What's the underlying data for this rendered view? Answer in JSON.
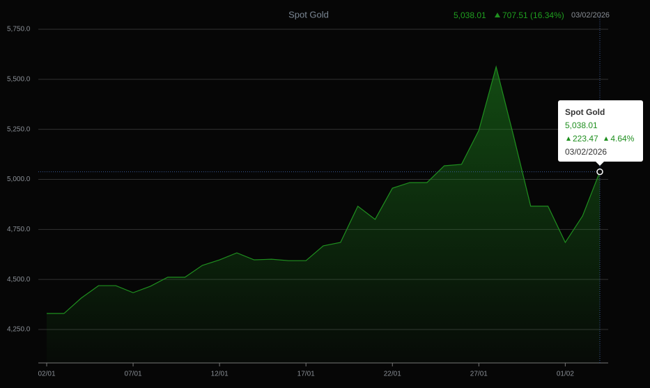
{
  "chart_data": {
    "type": "area",
    "title": "Spot Gold",
    "header": {
      "value": "5,038.01",
      "change": "707.51",
      "change_pct": "(16.34%)",
      "date": "03/02/2026"
    },
    "tooltip": {
      "title": "Spot Gold",
      "value": "5,038.01",
      "change": "223.47",
      "change_pct": "4.64%",
      "date": "03/02/2026"
    },
    "categories": [
      "02/01",
      null,
      null,
      null,
      null,
      "07/01",
      null,
      null,
      null,
      null,
      "12/01",
      null,
      null,
      null,
      null,
      "17/01",
      null,
      null,
      null,
      null,
      "22/01",
      null,
      null,
      null,
      null,
      "27/01",
      null,
      null,
      null,
      null,
      "01/02",
      null,
      null
    ],
    "values": [
      4330,
      4330,
      4407,
      4469,
      4469,
      4434,
      4466,
      4511,
      4511,
      4570,
      4598,
      4633,
      4598,
      4601,
      4594,
      4594,
      4668,
      4685,
      4866,
      4800,
      4956,
      4984,
      4984,
      5068,
      5075,
      5245,
      5562,
      5220,
      4866,
      4866,
      4685,
      4817,
      5038.01
    ],
    "color": "#1f8f1f",
    "ylim": [
      4083,
      5750
    ],
    "yticks": [
      {
        "value": 4250,
        "label": "4,250.0"
      },
      {
        "value": 4500,
        "label": "4,500.0"
      },
      {
        "value": 4750,
        "label": "4,750.0"
      },
      {
        "value": 5000,
        "label": "5,000.0"
      },
      {
        "value": 5250,
        "label": "5,250.0"
      },
      {
        "value": 5500,
        "label": "5,500.0"
      },
      {
        "value": 5750,
        "label": "5,750.0"
      }
    ],
    "grid": true
  }
}
